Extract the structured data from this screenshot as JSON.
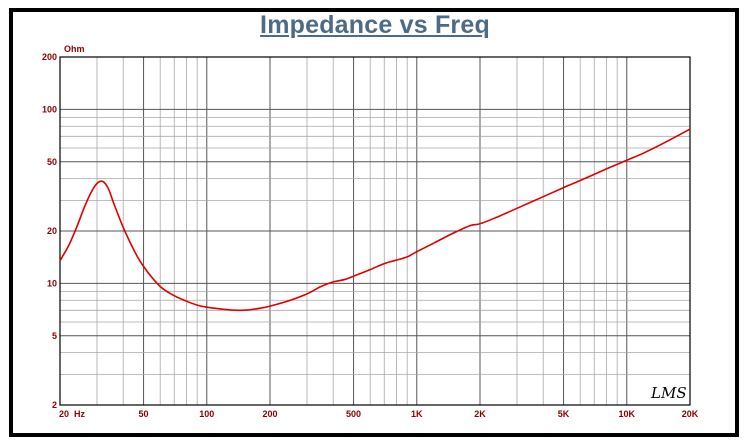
{
  "chart_data": {
    "type": "line",
    "title": "Impedance vs Freq",
    "y_unit_label": "Ohm",
    "x_scale": "log",
    "y_scale": "log",
    "xlim": [
      20,
      20000
    ],
    "ylim": [
      2,
      200
    ],
    "x_tick_labels": [
      {
        "value": 20,
        "label": "20  Hz"
      },
      {
        "value": 50,
        "label": "50"
      },
      {
        "value": 100,
        "label": "100"
      },
      {
        "value": 200,
        "label": "200"
      },
      {
        "value": 500,
        "label": "500"
      },
      {
        "value": 1000,
        "label": "1K"
      },
      {
        "value": 2000,
        "label": "2K"
      },
      {
        "value": 5000,
        "label": "5K"
      },
      {
        "value": 10000,
        "label": "10K"
      },
      {
        "value": 20000,
        "label": "20K"
      }
    ],
    "y_tick_labels": [
      {
        "value": 2,
        "label": "2"
      },
      {
        "value": 5,
        "label": "5"
      },
      {
        "value": 10,
        "label": "10"
      },
      {
        "value": 20,
        "label": "20"
      },
      {
        "value": 50,
        "label": "50"
      },
      {
        "value": 100,
        "label": "100"
      },
      {
        "value": 200,
        "label": "200"
      }
    ],
    "grid": true,
    "series": [
      {
        "color": "#e00000",
        "x": [
          20,
          22,
          24,
          26,
          28,
          30,
          32,
          34,
          36,
          40,
          45,
          50,
          60,
          70,
          80,
          90,
          100,
          120,
          140,
          160,
          180,
          200,
          250,
          300,
          350,
          400,
          450,
          500,
          600,
          700,
          800,
          900,
          1000,
          1200,
          1500,
          1800,
          2000,
          2500,
          3000,
          4000,
          5000,
          6000,
          8000,
          10000,
          12000,
          15000,
          20000
        ],
        "y": [
          13.5,
          16.5,
          21,
          27,
          33,
          37.5,
          38.5,
          35,
          29,
          21,
          15.5,
          12.5,
          9.6,
          8.5,
          7.9,
          7.5,
          7.3,
          7.1,
          7.0,
          7.05,
          7.2,
          7.4,
          8.0,
          8.7,
          9.6,
          10.2,
          10.5,
          11.0,
          12.0,
          13.0,
          13.6,
          14.2,
          15.2,
          17.0,
          19.5,
          21.5,
          22.0,
          24.5,
          27.0,
          31.5,
          35.5,
          39.0,
          45.5,
          51.0,
          56.0,
          64.0,
          77.0
        ]
      }
    ]
  },
  "signature": "LMS"
}
